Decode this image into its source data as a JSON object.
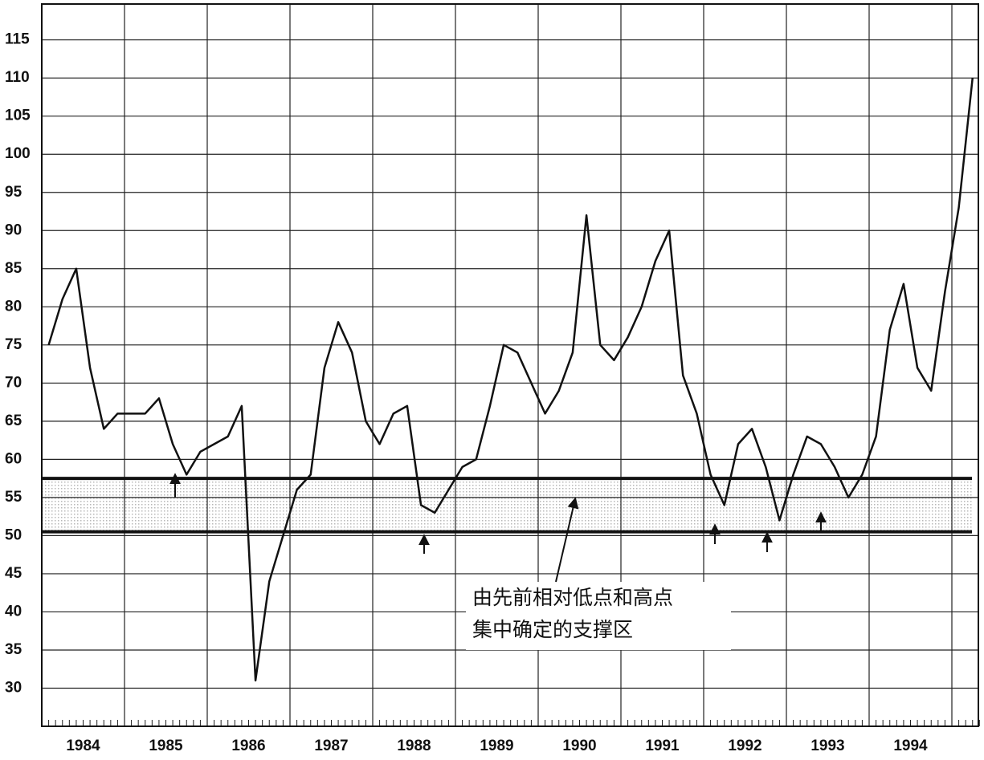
{
  "chart_data": {
    "type": "line",
    "categories": [
      null,
      null,
      "1984",
      null,
      null,
      null,
      null,
      null,
      "1985",
      null,
      null,
      null,
      null,
      null,
      "1986",
      null,
      null,
      null,
      null,
      null,
      "1987",
      null,
      null,
      null,
      null,
      null,
      "1988",
      null,
      null,
      null,
      null,
      null,
      "1989",
      null,
      null,
      null,
      null,
      null,
      "1990",
      null,
      null,
      null,
      null,
      null,
      "1991",
      null,
      null,
      null,
      null,
      null,
      "1992",
      null,
      null,
      null,
      null,
      null,
      "1993",
      null,
      null,
      null,
      null,
      null,
      "1994",
      null,
      null,
      null,
      null,
      null
    ],
    "series": [
      {
        "color": "#111111",
        "values": [
          75,
          81,
          85,
          72,
          64,
          66,
          66,
          66,
          68,
          62,
          58,
          61,
          62,
          63,
          67,
          31,
          44,
          50,
          56,
          58,
          72,
          78,
          74,
          65,
          62,
          66,
          67,
          54,
          53,
          56,
          59,
          60,
          67,
          75,
          74,
          70,
          66,
          69,
          74,
          92,
          75,
          73,
          76,
          80,
          86,
          90,
          71,
          66,
          58,
          54,
          62,
          64,
          59,
          52,
          58,
          63,
          62,
          59,
          55,
          58,
          63,
          77,
          83,
          72,
          69,
          82,
          93,
          110
        ]
      }
    ],
    "ylim": [
      25,
      119.7
    ],
    "yticks": [
      30,
      35,
      40,
      45,
      50,
      55,
      60,
      65,
      70,
      75,
      80,
      85,
      90,
      95,
      100,
      105,
      110,
      115
    ],
    "grid": true,
    "support_zone": [
      50.5,
      57.5
    ],
    "annotation": [
      "由先前相对低点和高点",
      "集中确定的支撑区"
    ]
  }
}
